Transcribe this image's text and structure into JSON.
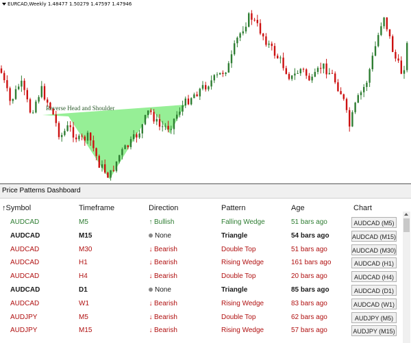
{
  "chart": {
    "symbol_header": "EURCAD,Weekly  1.48477 1.50279 1.47597 1.47946",
    "pattern_label": "Reverse Head and Shoulder",
    "colors": {
      "bull": "#2e7d32",
      "bear": "#cc1111",
      "pattern_fill": "#90ee90"
    }
  },
  "dashboard": {
    "title": "Price Patterns Dashboard",
    "headers": {
      "symbol": "Symbol",
      "timeframe": "Timeframe",
      "direction": "Direction",
      "pattern": "Pattern",
      "age": "Age",
      "chart": "Chart"
    },
    "rows": [
      {
        "symbol": "AUDCAD",
        "timeframe": "M5",
        "direction": "Bullish",
        "pattern": "Falling Wedge",
        "age": "51 bars ago",
        "chart": "AUDCAD (M5)",
        "kind": "bull"
      },
      {
        "symbol": "AUDCAD",
        "timeframe": "M15",
        "direction": "None",
        "pattern": "Triangle",
        "age": "54 bars ago",
        "chart": "AUDCAD (M15)",
        "kind": "neu"
      },
      {
        "symbol": "AUDCAD",
        "timeframe": "M30",
        "direction": "Bearish",
        "pattern": "Double Top",
        "age": "51 bars ago",
        "chart": "AUDCAD (M30)",
        "kind": "bear"
      },
      {
        "symbol": "AUDCAD",
        "timeframe": "H1",
        "direction": "Bearish",
        "pattern": "Rising Wedge",
        "age": "161 bars ago",
        "chart": "AUDCAD (H1)",
        "kind": "bear"
      },
      {
        "symbol": "AUDCAD",
        "timeframe": "H4",
        "direction": "Bearish",
        "pattern": "Double Top",
        "age": "20 bars ago",
        "chart": "AUDCAD (H4)",
        "kind": "bear"
      },
      {
        "symbol": "AUDCAD",
        "timeframe": "D1",
        "direction": "None",
        "pattern": "Triangle",
        "age": "85 bars ago",
        "chart": "AUDCAD (D1)",
        "kind": "neu"
      },
      {
        "symbol": "AUDCAD",
        "timeframe": "W1",
        "direction": "Bearish",
        "pattern": "Rising Wedge",
        "age": "83 bars ago",
        "chart": "AUDCAD (W1)",
        "kind": "bear"
      },
      {
        "symbol": "AUDJPY",
        "timeframe": "M5",
        "direction": "Bearish",
        "pattern": "Double Top",
        "age": "62 bars ago",
        "chart": "AUDJPY (M5)",
        "kind": "bear"
      },
      {
        "symbol": "AUDJPY",
        "timeframe": "M15",
        "direction": "Bearish",
        "pattern": "Rising Wedge",
        "age": "57 bars ago",
        "chart": "AUDJPY (M15)",
        "kind": "bear"
      }
    ]
  }
}
